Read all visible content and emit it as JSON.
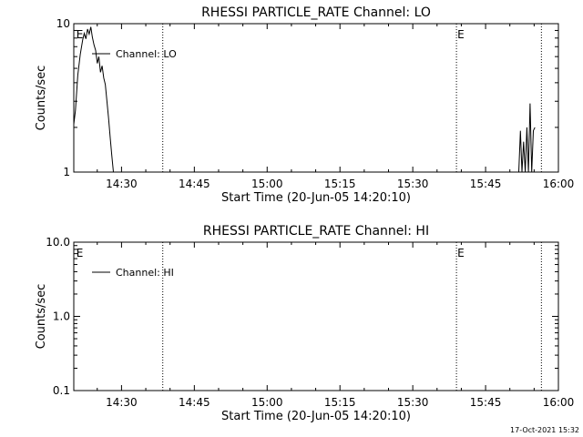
{
  "chart_data": [
    {
      "type": "line",
      "title": "RHESSI PARTICLE_RATE Channel: LO",
      "xlabel": "Start Time (20-Jun-05 14:20:10)",
      "ylabel": "Counts/sec",
      "y_scale": "log",
      "ylim": [
        1,
        10
      ],
      "y_ticks": [
        1,
        10
      ],
      "y_tick_labels": [
        "1",
        "10"
      ],
      "xlim": [
        "14:20:10",
        "16:00:00"
      ],
      "x_ticks": [
        "14:30",
        "14:45",
        "15:00",
        "15:15",
        "15:30",
        "15:45",
        "16:00"
      ],
      "legend": {
        "position": "top-left",
        "label": "Channel: LO"
      },
      "event_markers": [
        {
          "time": "14:20:30",
          "label": "E"
        },
        {
          "time": "14:38:30",
          "label": ""
        },
        {
          "time": "15:39:00",
          "label": "E"
        },
        {
          "time": "15:56:30",
          "label": ""
        }
      ],
      "series": [
        {
          "segments": [
            [
              [
                "14:20:10",
                2.1
              ],
              [
                "14:20:30",
                2.6
              ],
              [
                "14:21:00",
                4.5
              ],
              [
                "14:21:30",
                6.2
              ],
              [
                "14:22:00",
                7.8
              ],
              [
                "14:22:20",
                8.6
              ],
              [
                "14:22:40",
                7.9
              ],
              [
                "14:23:00",
                9.2
              ],
              [
                "14:23:20",
                8.5
              ],
              [
                "14:23:40",
                9.5
              ],
              [
                "14:24:00",
                8.1
              ],
              [
                "14:24:20",
                7.2
              ],
              [
                "14:24:40",
                6.6
              ],
              [
                "14:25:00",
                5.4
              ],
              [
                "14:25:20",
                6.0
              ],
              [
                "14:25:40",
                4.7
              ],
              [
                "14:26:00",
                5.2
              ],
              [
                "14:26:20",
                4.3
              ],
              [
                "14:26:40",
                3.9
              ],
              [
                "14:27:00",
                3.0
              ],
              [
                "14:27:20",
                2.3
              ],
              [
                "14:27:40",
                1.7
              ],
              [
                "14:28:00",
                1.3
              ],
              [
                "14:28:20",
                1.0
              ]
            ],
            [
              [
                "15:51:50",
                1.0
              ],
              [
                "15:52:10",
                1.9
              ],
              [
                "15:52:30",
                1.0
              ],
              [
                "15:52:50",
                1.6
              ],
              [
                "15:53:10",
                1.0
              ],
              [
                "15:53:30",
                2.0
              ],
              [
                "15:53:50",
                1.0
              ],
              [
                "15:54:10",
                2.9
              ],
              [
                "15:54:30",
                1.0
              ],
              [
                "15:54:50",
                1.9
              ],
              [
                "15:55:10",
                2.0
              ]
            ]
          ]
        }
      ]
    },
    {
      "type": "line",
      "title": "RHESSI PARTICLE_RATE Channel: HI",
      "xlabel": "Start Time (20-Jun-05 14:20:10)",
      "ylabel": "Counts/sec",
      "y_scale": "log",
      "ylim": [
        0.1,
        10
      ],
      "y_ticks": [
        0.1,
        1,
        10
      ],
      "y_tick_labels": [
        "0.1",
        "1.0",
        "10.0"
      ],
      "xlim": [
        "14:20:10",
        "16:00:00"
      ],
      "x_ticks": [
        "14:30",
        "14:45",
        "15:00",
        "15:15",
        "15:30",
        "15:45",
        "16:00"
      ],
      "legend": {
        "position": "top-left",
        "label": "Channel: HI"
      },
      "event_markers": [
        {
          "time": "14:20:30",
          "label": "E"
        },
        {
          "time": "14:38:30",
          "label": ""
        },
        {
          "time": "15:39:00",
          "label": "E"
        },
        {
          "time": "15:56:30",
          "label": ""
        }
      ],
      "series": [
        {
          "segments": []
        }
      ]
    }
  ],
  "footer": {
    "timestamp": "17-Oct-2021 15:32"
  }
}
